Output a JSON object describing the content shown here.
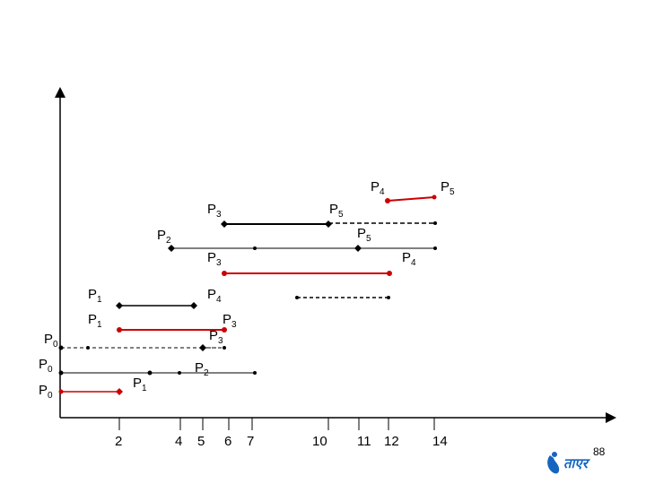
{
  "x_ticks": [
    "2",
    "4",
    "5",
    "6",
    "7",
    "10",
    "11",
    "12",
    "14"
  ],
  "page_number": "88",
  "logo_text": "ताएर",
  "colors": {
    "black": "#000000",
    "red": "#cc0000",
    "logo": "#1565c0"
  },
  "labels": [
    {
      "id": "p0-a",
      "base": "P",
      "sub": "0"
    },
    {
      "id": "p0-b",
      "base": "P",
      "sub": "0"
    },
    {
      "id": "p0-c",
      "base": "P",
      "sub": "0"
    },
    {
      "id": "p1-a",
      "base": "P",
      "sub": "1"
    },
    {
      "id": "p1-b",
      "base": "P",
      "sub": "1"
    },
    {
      "id": "p1-c",
      "base": "P",
      "sub": "1"
    },
    {
      "id": "p2-a",
      "base": "P",
      "sub": "2"
    },
    {
      "id": "p2-b",
      "base": "P",
      "sub": "2"
    },
    {
      "id": "p3-a",
      "base": "P",
      "sub": "3"
    },
    {
      "id": "p3-b",
      "base": "P",
      "sub": "3"
    },
    {
      "id": "p3-c",
      "base": "P",
      "sub": "3"
    },
    {
      "id": "p3-d",
      "base": "P",
      "sub": "3"
    },
    {
      "id": "p4-a",
      "base": "P",
      "sub": "4"
    },
    {
      "id": "p4-b",
      "base": "P",
      "sub": "4"
    },
    {
      "id": "p4-c",
      "base": "P",
      "sub": "4"
    },
    {
      "id": "p5-a",
      "base": "P",
      "sub": "5"
    },
    {
      "id": "p5-b",
      "base": "P",
      "sub": "5"
    },
    {
      "id": "p5-c",
      "base": "P",
      "sub": "5"
    }
  ],
  "segments": [
    {
      "id": "seg-p0-red",
      "style": "solid",
      "color": "red"
    },
    {
      "id": "seg-p0-black-row",
      "style": "solid",
      "color": "black"
    },
    {
      "id": "seg-p2-dashed-row",
      "style": "dashed",
      "color": "black"
    },
    {
      "id": "seg-p0-dashed-row",
      "style": "dashed",
      "color": "black"
    },
    {
      "id": "seg-p3-dashed-short",
      "style": "dashed",
      "color": "black"
    },
    {
      "id": "seg-p1-red",
      "style": "solid",
      "color": "red"
    },
    {
      "id": "seg-p1-black",
      "style": "solid",
      "color": "black"
    },
    {
      "id": "seg-p4-dashed-mid",
      "style": "dashed",
      "color": "black"
    },
    {
      "id": "seg-p3-red",
      "style": "solid",
      "color": "red"
    },
    {
      "id": "seg-p2-thin",
      "style": "solid",
      "color": "black"
    },
    {
      "id": "seg-p5-dashed",
      "style": "dashed",
      "color": "black"
    },
    {
      "id": "seg-p3-thick",
      "style": "solid",
      "color": "black"
    },
    {
      "id": "seg-p4-red-short",
      "style": "solid",
      "color": "red"
    }
  ]
}
